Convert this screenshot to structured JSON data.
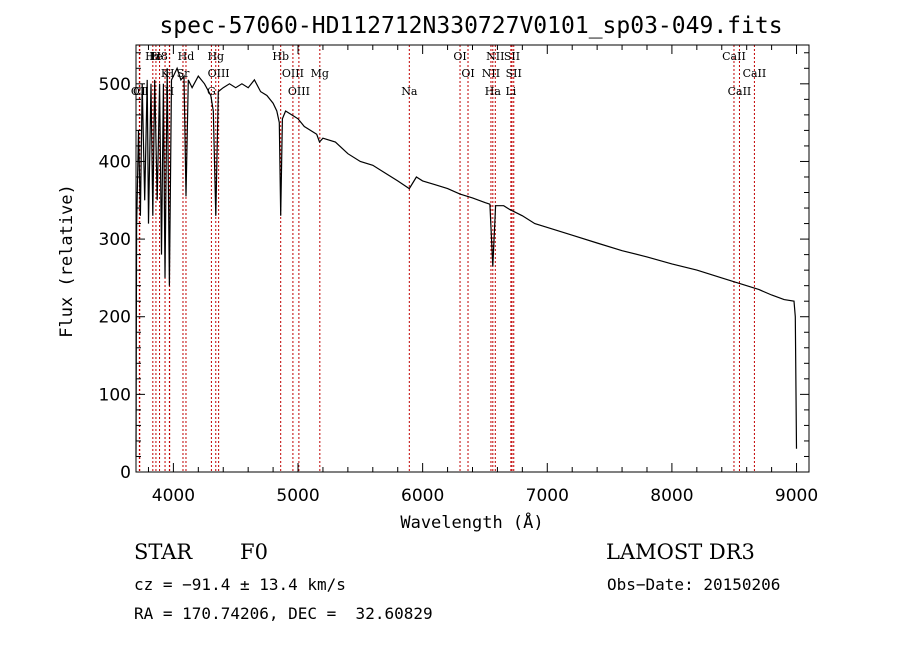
{
  "chart_data": {
    "type": "line",
    "title": "spec-57060-HD112712N330727V0101_sp03-049.fits",
    "xlabel": "Wavelength (Å)",
    "ylabel": "Flux (relative)",
    "xlim": [
      3700,
      9100
    ],
    "ylim": [
      0,
      550
    ],
    "x_ticks": [
      4000,
      5000,
      6000,
      7000,
      8000,
      9000
    ],
    "y_ticks": [
      0,
      100,
      200,
      300,
      400,
      500
    ],
    "grid": false,
    "series": [
      {
        "name": "flux",
        "x": [
          3700,
          3705,
          3720,
          3735,
          3750,
          3770,
          3790,
          3800,
          3820,
          3835,
          3850,
          3870,
          3889,
          3905,
          3920,
          3933,
          3950,
          3968,
          3985,
          4000,
          4030,
          4060,
          4085,
          4101,
          4120,
          4150,
          4200,
          4250,
          4300,
          4320,
          4340,
          4360,
          4400,
          4450,
          4500,
          4550,
          4600,
          4650,
          4700,
          4750,
          4800,
          4830,
          4850,
          4861,
          4875,
          4900,
          4950,
          5000,
          5050,
          5100,
          5150,
          5172,
          5200,
          5300,
          5400,
          5500,
          5600,
          5700,
          5800,
          5893,
          5950,
          6000,
          6100,
          6200,
          6300,
          6400,
          6500,
          6540,
          6563,
          6585,
          6650,
          6700,
          6800,
          6900,
          7000,
          7200,
          7400,
          7600,
          7800,
          8000,
          8200,
          8400,
          8500,
          8600,
          8700,
          8800,
          8900,
          8980,
          8990,
          9000
        ],
        "y": [
          20,
          315,
          440,
          330,
          500,
          350,
          505,
          320,
          500,
          330,
          505,
          350,
          500,
          280,
          500,
          250,
          520,
          240,
          505,
          510,
          520,
          505,
          510,
          355,
          505,
          495,
          510,
          500,
          485,
          465,
          330,
          490,
          495,
          500,
          495,
          500,
          495,
          505,
          490,
          485,
          475,
          465,
          450,
          330,
          455,
          465,
          460,
          455,
          445,
          440,
          435,
          425,
          430,
          425,
          410,
          400,
          395,
          385,
          375,
          365,
          380,
          375,
          370,
          365,
          358,
          353,
          347,
          345,
          265,
          343,
          343,
          338,
          330,
          320,
          315,
          305,
          295,
          285,
          277,
          268,
          260,
          250,
          245,
          240,
          235,
          228,
          222,
          220,
          200,
          30
        ]
      }
    ],
    "line_markers": [
      {
        "label": "H8",
        "wavelength": 3889
      },
      {
        "label": "K",
        "wavelength": 3933
      },
      {
        "label": "H",
        "wavelength": 3968
      },
      {
        "label": "Hd",
        "wavelength": 4101
      },
      {
        "label": "OIII",
        "wavelength": 4363
      },
      {
        "label": "CI",
        "wavelength": 3727
      },
      {
        "label": "Fe",
        "wavelength": 3860
      },
      {
        "label": "Sr",
        "wavelength": 4077
      },
      {
        "label": "OII",
        "wavelength": 3730
      },
      {
        "label": "Hz",
        "wavelength": 3835
      },
      {
        "label": "H",
        "wavelength": 3970
      },
      {
        "label": "G",
        "wavelength": 4305
      },
      {
        "label": "Hg",
        "wavelength": 4340
      },
      {
        "label": "OIII",
        "wavelength": 4959
      },
      {
        "label": "OIII",
        "wavelength": 5007
      },
      {
        "label": "Hb",
        "wavelength": 4861
      },
      {
        "label": "Mg",
        "wavelength": 5175
      },
      {
        "label": "Na",
        "wavelength": 5893
      },
      {
        "label": "OI",
        "wavelength": 6300
      },
      {
        "label": "OI",
        "wavelength": 6364
      },
      {
        "label": "Ha",
        "wavelength": 6563
      },
      {
        "label": "SII",
        "wavelength": 6717
      },
      {
        "label": "NII",
        "wavelength": 6548
      },
      {
        "label": "Li",
        "wavelength": 6708
      },
      {
        "label": "NII",
        "wavelength": 6583
      },
      {
        "label": "SII",
        "wavelength": 6731
      },
      {
        "label": "CaII",
        "wavelength": 8542
      },
      {
        "label": "CaII",
        "wavelength": 8498
      },
      {
        "label": "CaII",
        "wavelength": 8662
      }
    ]
  },
  "footer": {
    "object_type": "STAR",
    "subclass": "F0",
    "survey": "LAMOST DR3",
    "cz": "cz = −91.4 ± 13.4 km/s",
    "obs_date": "Obs−Date: 20150206",
    "coords": "RA = 170.74206, DEC =  32.60829"
  }
}
